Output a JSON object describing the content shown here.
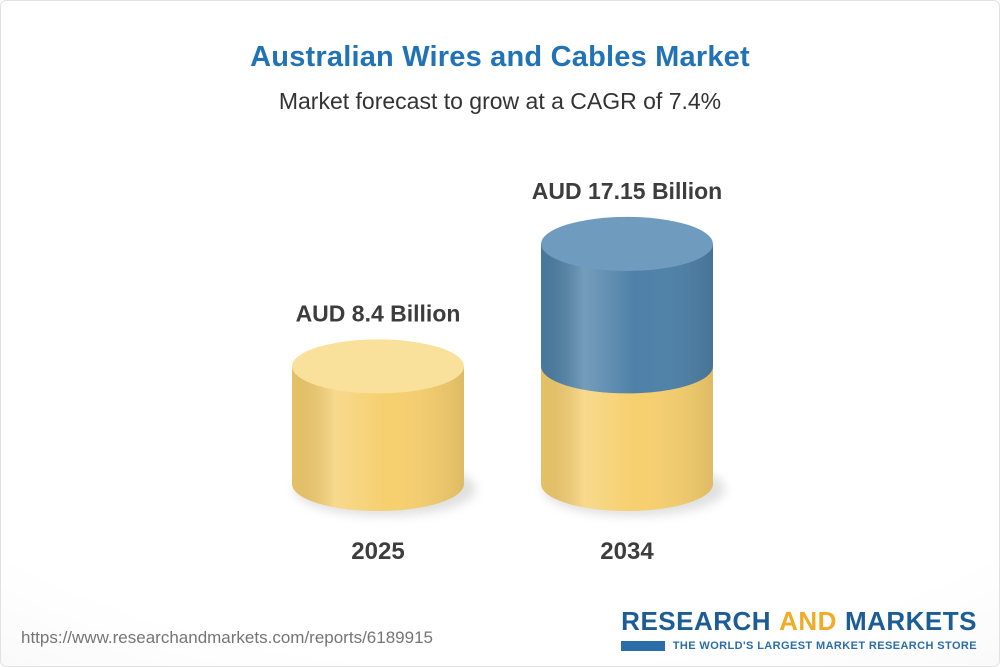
{
  "header": {
    "title": "Australian Wires and Cables Market",
    "subtitle": "Market forecast to grow at a CAGR of 7.4%"
  },
  "chart_data": {
    "type": "bar",
    "subtype": "3d-cylinder",
    "title": "Australian Wires and Cables Market",
    "subtitle": "Market forecast to grow at a CAGR of 7.4%",
    "unit": "AUD Billion",
    "cagr_percent": 7.4,
    "categories": [
      "2025",
      "2034"
    ],
    "values": [
      8.4,
      17.15
    ],
    "value_labels": [
      "AUD 8.4 Billion",
      "AUD 17.15 Billion"
    ],
    "xlabel": "",
    "ylabel": "",
    "grid": false,
    "legend": false,
    "bars": [
      {
        "category": "2025",
        "total": 8.4,
        "label": "AUD 8.4 Billion",
        "segments": [
          {
            "value": 8.4,
            "color_body": "#f6cf6e",
            "color_top": "#f9e09b"
          }
        ]
      },
      {
        "category": "2034",
        "total": 17.15,
        "label": "AUD 17.15 Billion",
        "segments": [
          {
            "value": 8.4,
            "color_body": "#f6cf6e",
            "color_top": "#f9e09b"
          },
          {
            "value": 8.75,
            "color_body": "#4e81a8",
            "color_top": "#6f9cbe"
          }
        ]
      }
    ]
  },
  "footer": {
    "url": "https://www.researchandmarkets.com/reports/6189915",
    "logo": {
      "word1": "RESEARCH",
      "word2": "AND",
      "word3": "MARKETS",
      "tagline": "THE WORLD'S LARGEST MARKET RESEARCH STORE"
    }
  },
  "colors": {
    "title_blue": "#2173b6",
    "text_dark": "#3d3d3d",
    "bar_yellow": "#f6cf6e",
    "bar_yellow_top": "#f9e09b",
    "bar_blue": "#4e81a8",
    "bar_blue_top": "#6f9cbe",
    "logo_blue": "#1d5d96",
    "logo_gold": "#f2ab27",
    "url_gray": "#757575"
  }
}
